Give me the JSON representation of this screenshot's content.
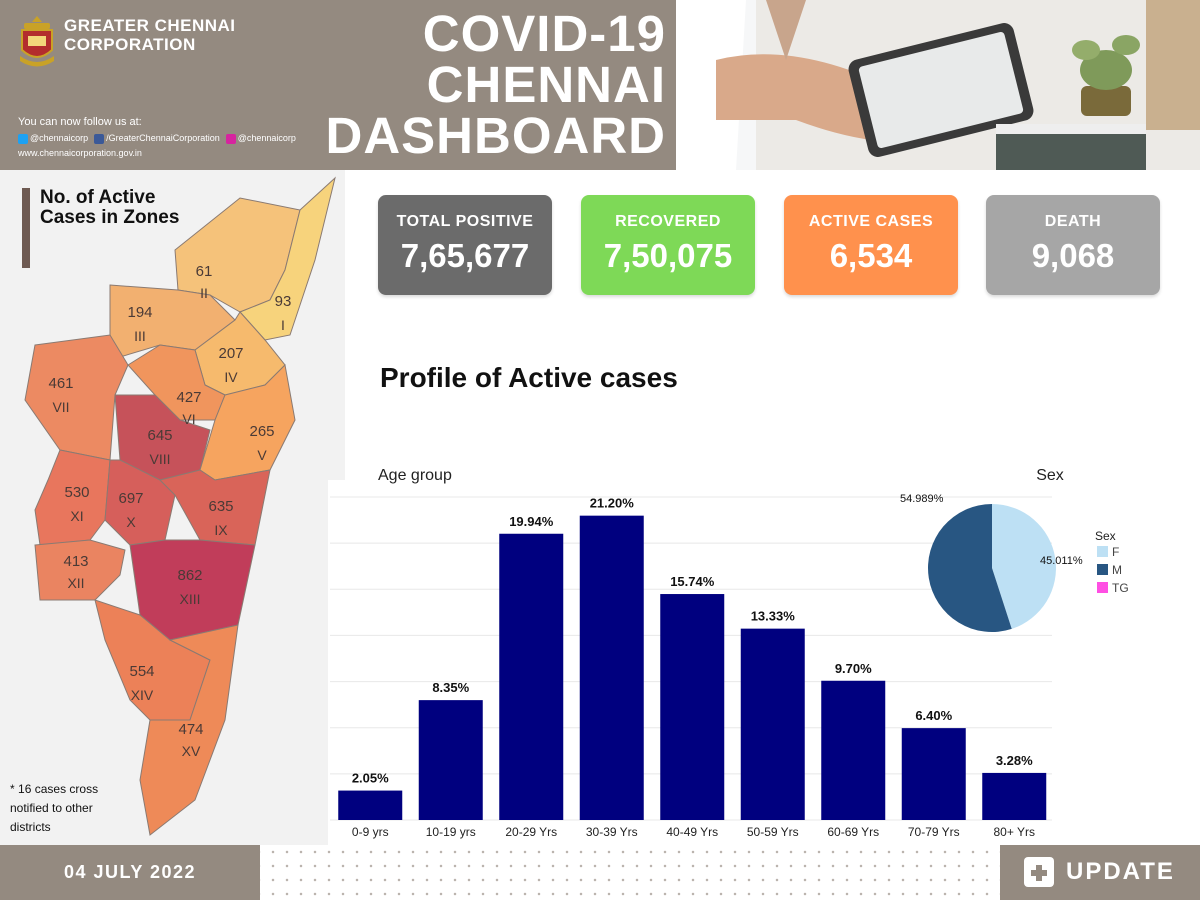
{
  "header": {
    "org_name": "GREATER CHENNAI CORPORATION",
    "follow_text": "You can now follow us at:",
    "social": [
      {
        "icon": "twitter-icon",
        "label": "@chennaicorp",
        "color": "#1da1f2"
      },
      {
        "icon": "facebook-icon",
        "label": "/GreaterChennaiCorporation",
        "color": "#3b5998"
      },
      {
        "icon": "instagram-icon",
        "label": "@chennaicorp",
        "color": "#d6249f"
      }
    ],
    "website": "www.chennaicorporation.gov.in",
    "title_lines": [
      "COVID-19",
      "CHENNAI",
      "DASHBOARD"
    ]
  },
  "stats": [
    {
      "label": "TOTAL POSITIVE",
      "value": "7,65,677",
      "color": "#6b6b6b"
    },
    {
      "label": "RECOVERED",
      "value": "7,50,075",
      "color": "#7ed957"
    },
    {
      "label": "ACTIVE CASES",
      "value": "6,534",
      "color": "#ff914d"
    },
    {
      "label": "DEATH",
      "value": "9,068",
      "color": "#a6a6a6"
    }
  ],
  "profile_title": "Profile of Active cases",
  "map": {
    "title": "No. of Active Cases in Zones",
    "footnote_star": "*",
    "footnote_count": "16",
    "footnote_text": "cases cross notified to other districts",
    "zones": [
      {
        "value": "61",
        "roman": "II"
      },
      {
        "value": "93",
        "roman": "I"
      },
      {
        "value": "194",
        "roman": "III"
      },
      {
        "value": "207",
        "roman": "IV"
      },
      {
        "value": "461",
        "roman": "VII"
      },
      {
        "value": "427",
        "roman": "VI"
      },
      {
        "value": "645",
        "roman": "VIII"
      },
      {
        "value": "265",
        "roman": "V"
      },
      {
        "value": "530",
        "roman": "XI"
      },
      {
        "value": "697",
        "roman": "X"
      },
      {
        "value": "635",
        "roman": "IX"
      },
      {
        "value": "413",
        "roman": "XII"
      },
      {
        "value": "862",
        "roman": "XIII"
      },
      {
        "value": "554",
        "roman": "XIV"
      },
      {
        "value": "474",
        "roman": "XV"
      }
    ]
  },
  "chart_data": [
    {
      "type": "bar",
      "title": "Age group",
      "categories": [
        "0-9 yrs",
        "10-19 yrs",
        "20-29 Yrs",
        "30-39 Yrs",
        "40-49 Yrs",
        "50-59 Yrs",
        "60-69 Yrs",
        "70-79 Yrs",
        "80+ Yrs"
      ],
      "values": [
        2.05,
        8.35,
        19.94,
        21.2,
        15.74,
        13.33,
        9.7,
        6.4,
        3.28
      ],
      "value_labels": [
        "2.05%",
        "8.35%",
        "19.94%",
        "21.20%",
        "15.74%",
        "13.33%",
        "9.70%",
        "6.40%",
        "3.28%"
      ],
      "ylim": [
        0,
        22.5
      ],
      "grid": true,
      "bar_color": "#00007f"
    },
    {
      "type": "pie",
      "title": "Sex",
      "legend_title": "Sex",
      "legend_position": "right",
      "slices": [
        {
          "name": "F",
          "value": 45.011,
          "label": "45.011%",
          "color": "#bde0f4"
        },
        {
          "name": "M",
          "value": 54.989,
          "label": "54.989%",
          "color": "#285682"
        },
        {
          "name": "TG",
          "value": 0,
          "label": "",
          "color": "#ff4fe3"
        }
      ]
    }
  ],
  "footer": {
    "date": "04 JULY 2022",
    "update_label": "UPDATE"
  }
}
